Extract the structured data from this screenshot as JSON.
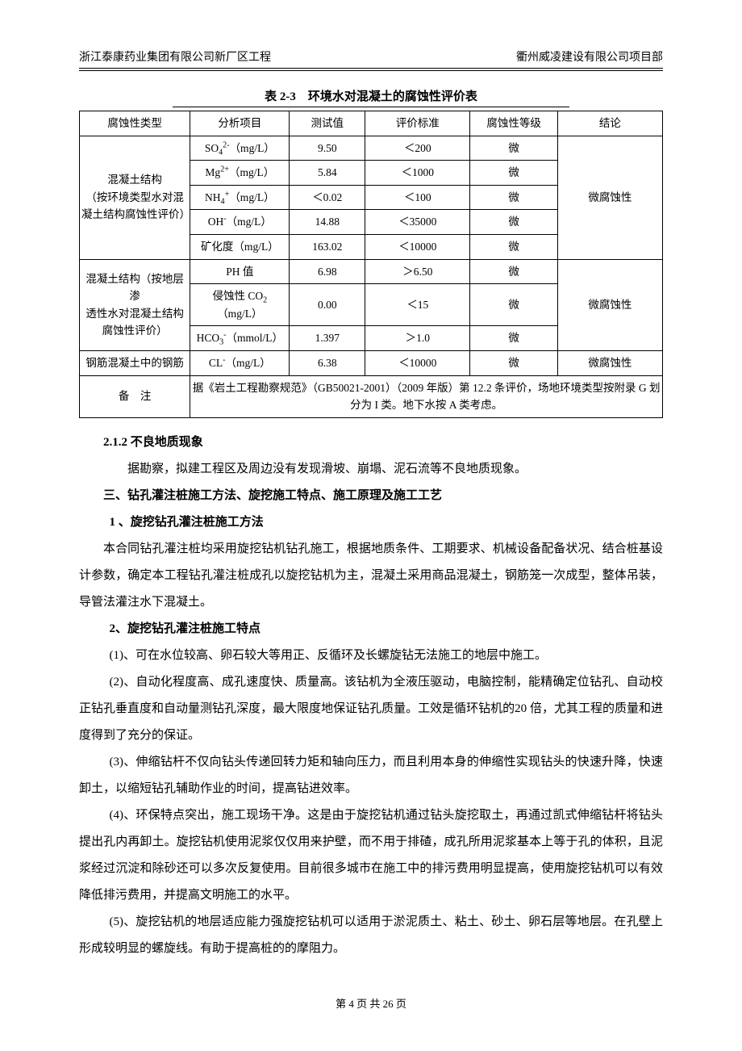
{
  "header": {
    "left": "浙江泰康药业集团有限公司新厂区工程",
    "right": "衢州威凌建设有限公司项目部"
  },
  "table": {
    "title": "表 2-3　环境水对混凝土的腐蚀性评价表",
    "columns": [
      "腐蚀性类型",
      "分析项目",
      "测试值",
      "评价标准",
      "腐蚀性等级",
      "结论"
    ],
    "groups": [
      {
        "type_label": "混凝土结构\n（按环境类型水对混\n凝土结构腐蚀性评价）",
        "conclusion": "微腐蚀性",
        "rows": [
          {
            "item_html": "SO<sub>4</sub><sup>2-</sup>（mg/L）",
            "value": "9.50",
            "std": "＜200",
            "grade": "微"
          },
          {
            "item_html": "Mg<sup>2+</sup>（mg/L）",
            "value": "5.84",
            "std": "＜1000",
            "grade": "微"
          },
          {
            "item_html": "NH<sub>4</sub><sup>+</sup>（mg/L）",
            "value": "＜0.02",
            "std": "＜100",
            "grade": "微"
          },
          {
            "item_html": "OH<sup>-</sup>（mg/L）",
            "value": "14.88",
            "std": "＜35000",
            "grade": "微"
          },
          {
            "item_html": "矿化度（mg/L）",
            "value": "163.02",
            "std": "＜10000",
            "grade": "微"
          }
        ]
      },
      {
        "type_label": "混凝土结构（按地层渗\n透性水对混凝土结构\n腐蚀性评价）",
        "conclusion": "微腐蚀性",
        "rows": [
          {
            "item_html": "PH 值",
            "value": "6.98",
            "std": "＞6.50",
            "grade": "微"
          },
          {
            "item_html": "侵蚀性 CO<sub>2</sub>（mg/L）",
            "value": "0.00",
            "std": "＜15",
            "grade": "微"
          },
          {
            "item_html": "HCO<sub>3</sub><sup>-</sup>（mmol/L）",
            "value": "1.397",
            "std": "＞1.0",
            "grade": "微"
          }
        ]
      },
      {
        "type_label": "钢筋混凝土中的钢筋",
        "conclusion": "微腐蚀性",
        "rows": [
          {
            "item_html": "CL<sup>-</sup>（mg/L）",
            "value": "6.38",
            "std": "＜10000",
            "grade": "微"
          }
        ]
      }
    ],
    "note_label": "备　注",
    "note_text": "据《岩土工程勘察规范》（GB50021-2001）（2009 年版）第 12.2 条评价，场地环境类型按附录 G 划分为 I 类。地下水按 A 类考虑。"
  },
  "body": {
    "h212": "2.1.2 不良地质现象",
    "p212": "据勘察，拟建工程区及周边没有发现滑坡、崩塌、泥石流等不良地质现象。",
    "h3": "三、钻孔灌注桩施工方法、旋挖施工特点、施工原理及施工工艺",
    "h3_1": "1 、旋挖钻孔灌注桩施工方法",
    "p3_1": "本合同钻孔灌注桩均采用旋挖钻机钻孔施工，根据地质条件、工期要求、机械设备配备状况、结合桩基设计参数，确定本工程钻孔灌注桩成孔以旋挖钻机为主，混凝土采用商品混凝土，钢筋笼一次成型，整体吊装，导管法灌注水下混凝土。",
    "h3_2": "2、旋挖钻孔灌注桩施工特点",
    "li1": "(1)、可在水位较高、卵石较大等用正、反循环及长螺旋钻无法施工的地层中施工。",
    "li2": "(2)、自动化程度高、成孔速度快、质量高。该钻机为全液压驱动，电脑控制，能精确定位钻孔、自动校正钻孔垂直度和自动量测钻孔深度，最大限度地保证钻孔质量。工效是循环钻机的20 倍，尤其工程的质量和进度得到了充分的保证。",
    "li3": "(3)、伸缩钻杆不仅向钻头传递回转力矩和轴向压力，而且利用本身的伸缩性实现钻头的快速升降，快速卸土，以缩短钻孔辅助作业的时间，提高钻进效率。",
    "li4": "(4)、环保特点突出，施工现场干净。这是由于旋挖钻机通过钻头旋挖取土，再通过凯式伸缩钻杆将钻头提出孔内再卸土。旋挖钻机使用泥浆仅仅用来护壁，而不用于排碴，成孔所用泥浆基本上等于孔的体积，且泥浆经过沉淀和除砂还可以多次反复使用。目前很多城市在施工中的排污费用明显提高，使用旋挖钻机可以有效降低排污费用，并提高文明施工的水平。",
    "li5": "(5)、旋挖钻机的地层适应能力强旋挖钻机可以适用于淤泥质土、粘土、砂土、卵石层等地层。在孔壁上形成较明显的螺旋线。有助于提高桩的的摩阻力。"
  },
  "footer": {
    "prefix": "第 ",
    "page": "4",
    "mid": " 页 共 ",
    "total": "26",
    "suffix": " 页"
  }
}
